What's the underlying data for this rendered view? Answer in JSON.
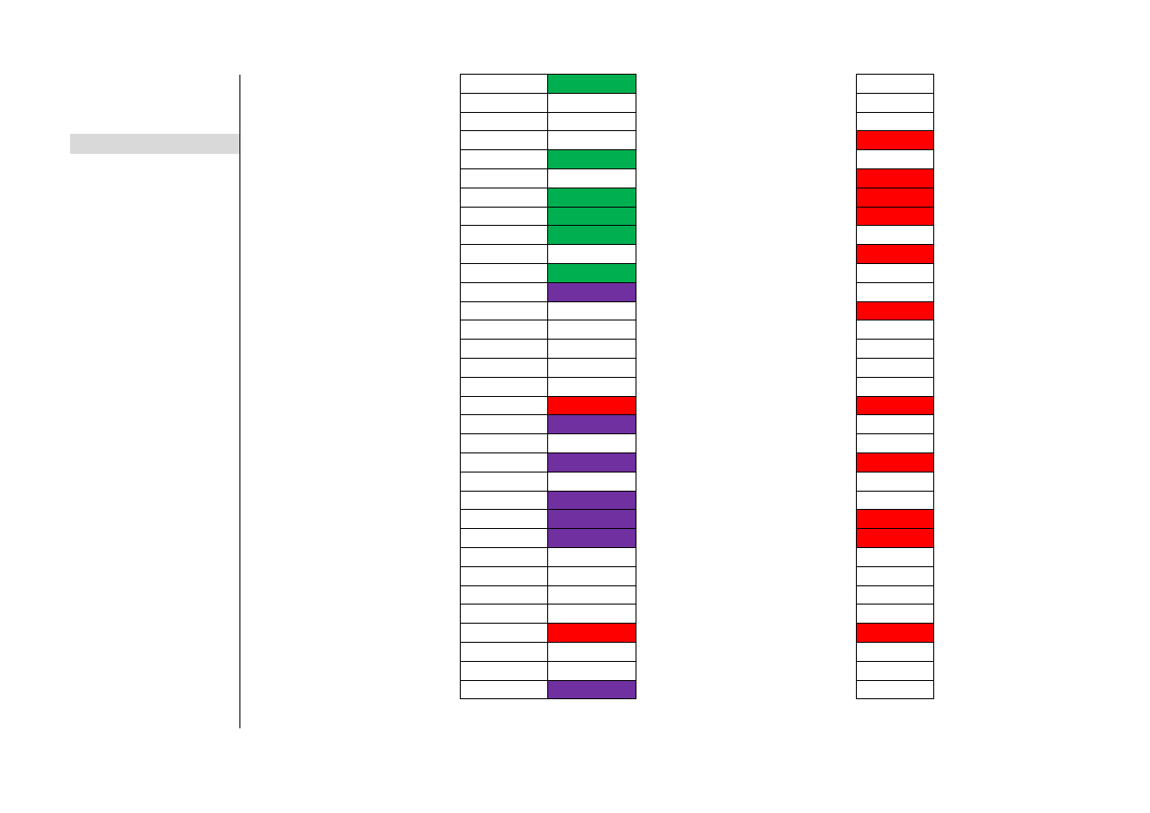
{
  "colors": {
    "green": "#00b050",
    "purple": "#7030a0",
    "red": "#ff0000",
    "white": "#ffffff",
    "highlight": "#d9d9d9"
  },
  "left_panel": {
    "highlight_color": "#d9d9d9"
  },
  "columns": {
    "a": [
      "white",
      "white",
      "white",
      "white",
      "white",
      "white",
      "white",
      "white",
      "white",
      "white",
      "white",
      "white",
      "white",
      "white",
      "white",
      "white",
      "white",
      "white",
      "white",
      "white",
      "white",
      "white",
      "white",
      "white",
      "white",
      "white",
      "white",
      "white",
      "white",
      "white",
      "white",
      "white",
      "white"
    ],
    "b": [
      "green",
      "white",
      "white",
      "white",
      "green",
      "white",
      "green",
      "green",
      "green",
      "white",
      "green",
      "purple",
      "white",
      "white",
      "white",
      "white",
      "white",
      "red",
      "purple",
      "white",
      "purple",
      "white",
      "purple",
      "purple",
      "purple",
      "white",
      "white",
      "white",
      "white",
      "red",
      "white",
      "white",
      "purple"
    ],
    "c": [
      "white",
      "white",
      "white",
      "red",
      "white",
      "red",
      "red",
      "red",
      "white",
      "red",
      "white",
      "white",
      "red",
      "white",
      "white",
      "white",
      "white",
      "red",
      "white",
      "white",
      "red",
      "white",
      "white",
      "red",
      "red",
      "white",
      "white",
      "white",
      "white",
      "red",
      "white",
      "white",
      "white"
    ]
  }
}
